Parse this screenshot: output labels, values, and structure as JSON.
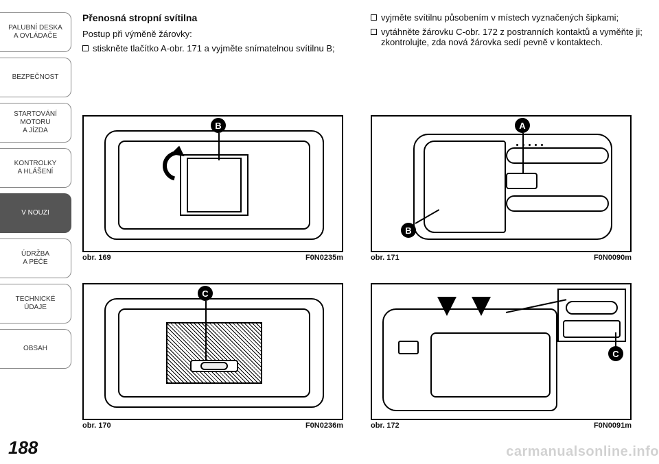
{
  "sidebar": {
    "items": [
      {
        "label": "PALUBNÍ DESKA\nA OVLÁDAČE",
        "active": false
      },
      {
        "label": "BEZPEČNOST",
        "active": false
      },
      {
        "label": "STARTOVÁNÍ\nMOTORU\nA JÍZDA",
        "active": false
      },
      {
        "label": "KONTROLKY\nA HLÁŠENÍ",
        "active": false
      },
      {
        "label": "V NOUZI",
        "active": true
      },
      {
        "label": "ÚDRŽBA\nA PÉČE",
        "active": false
      },
      {
        "label": "TECHNICKÉ\nÚDAJE",
        "active": false
      },
      {
        "label": "OBSAH",
        "active": false
      }
    ]
  },
  "page_number": "188",
  "left_col": {
    "heading": "Přenosná stropní svítilna",
    "line1": "Postup při výměně žárovky:",
    "bullet1": "stiskněte tlačítko A-obr. 171 a vyjměte snímatelnou svítilnu B;"
  },
  "right_col": {
    "bullet1": "vyjměte svítilnu působením v místech vyznačených šipkami;",
    "bullet2": "vytáhněte žárovku C-obr. 172 z postranních kontaktů a vyměňte ji; zkontrolujte, zda nová žárovka sedí pevně v kontaktech."
  },
  "figures": {
    "f169": {
      "caption": "obr. 169",
      "code": "F0N0235m",
      "label_B": "B"
    },
    "f170": {
      "caption": "obr. 170",
      "code": "F0N0236m",
      "label_C": "C"
    },
    "f171": {
      "caption": "obr. 171",
      "code": "F0N0090m",
      "label_A": "A",
      "label_B": "B"
    },
    "f172": {
      "caption": "obr. 172",
      "code": "F0N0091m",
      "label_C": "C"
    }
  },
  "watermark": "carmanualsonline.info",
  "colors": {
    "active_bg": "#555555",
    "border": "#888888",
    "text": "#111111"
  }
}
